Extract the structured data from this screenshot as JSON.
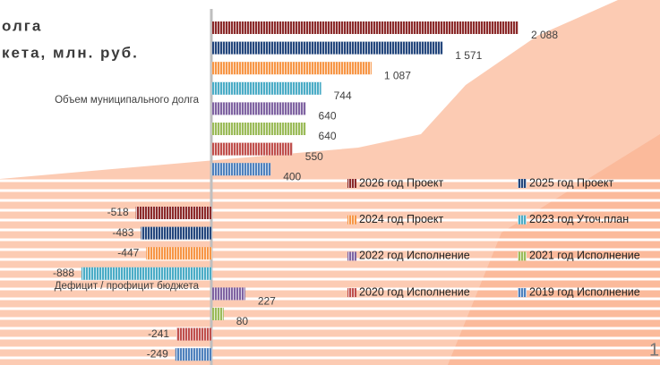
{
  "title_lines": [
    "олга",
    "кета, млн. руб."
  ],
  "page_number": "1",
  "chart_data": {
    "type": "bar",
    "orientation": "horizontal",
    "categories": [
      "Объем муниципального долга",
      "Дефицит / профицит бюджета"
    ],
    "series": [
      {
        "name": "2026 год Проект",
        "color": "#8c2b2b",
        "values": [
          2088,
          -518
        ],
        "value_labels": [
          "2 088",
          "-518"
        ]
      },
      {
        "name": "2025 год Проект",
        "color": "#24477d",
        "values": [
          1571,
          -483
        ],
        "value_labels": [
          "1 571",
          "-483"
        ]
      },
      {
        "name": "2024 год Проект",
        "color": "#f79646",
        "values": [
          1087,
          -447
        ],
        "value_labels": [
          "1 087",
          "-447"
        ]
      },
      {
        "name": "2023 год Уточ.план",
        "color": "#4bacc6",
        "values": [
          744,
          -888
        ]
      },
      {
        "name": "2022 год Исполнение",
        "color": "#8064a2",
        "values": [
          640,
          227
        ]
      },
      {
        "name": "2021 год Исполнение",
        "color": "#9bbb59",
        "values": [
          640,
          80
        ]
      },
      {
        "name": "2020 год Исполнение",
        "color": "#c0504d",
        "values": [
          550,
          -241
        ]
      },
      {
        "name": "2019 год Исполнение",
        "color": "#4f81bd",
        "values": [
          400,
          -249
        ]
      }
    ]
  }
}
